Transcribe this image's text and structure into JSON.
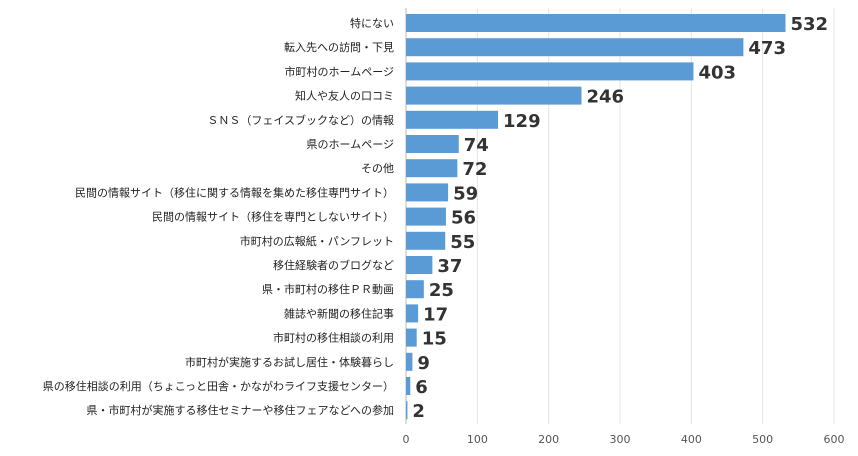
{
  "chart_data": {
    "type": "bar",
    "orientation": "horizontal",
    "title": "",
    "xlabel": "",
    "ylabel": "",
    "xlim": [
      0,
      600
    ],
    "x_ticks": [
      0,
      100,
      200,
      300,
      400,
      500,
      600
    ],
    "grid": true,
    "bar_color": "#5b9bd5",
    "categories": [
      "特にない",
      "転入先への訪問・下見",
      "市町村のホームページ",
      "知人や友人の口コミ",
      "ＳＮＳ（フェイスブックなど）の情報",
      "県のホームページ",
      "その他",
      "民間の情報サイト（移住に関する情報を集めた移住専門サイト）",
      "民間の情報サイト（移住を専門としないサイト）",
      "市町村の広報紙・パンフレット",
      "移住経験者のブログなど",
      "県・市町村の移住ＰＲ動画",
      "雑誌や新聞の移住記事",
      "市町村の移住相談の利用",
      "市町村が実施するお試し居住・体験暮らし",
      "県の移住相談の利用（ちょこっと田舎・かながわライフ支援センター）",
      "県・市町村が実施する移住セミナーや移住フェアなどへの参加"
    ],
    "values": [
      532,
      473,
      403,
      246,
      129,
      74,
      72,
      59,
      56,
      55,
      37,
      25,
      17,
      15,
      9,
      6,
      2
    ]
  }
}
